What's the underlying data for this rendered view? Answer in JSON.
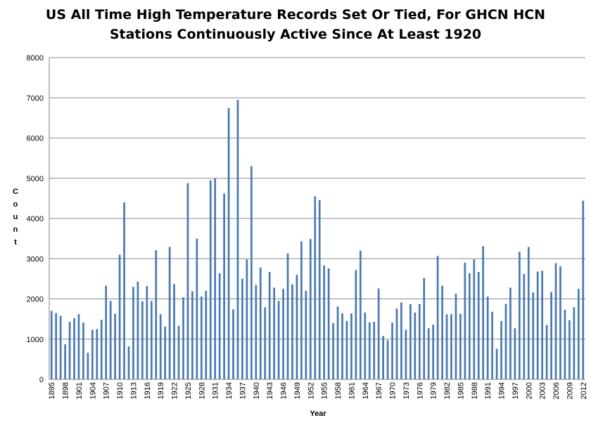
{
  "chart_data": {
    "type": "bar",
    "title": [
      "US All Time High Temperature Records Set Or Tied, For GHCN HCN",
      "Stations Continuously Active Since At Least 1920"
    ],
    "xlabel": "Year",
    "ylabel": "Count",
    "ylim": [
      0,
      8000
    ],
    "yticks": [
      "0",
      "1000",
      "2000",
      "3000",
      "4000",
      "5000",
      "6000",
      "7000",
      "8000"
    ],
    "grid": true,
    "legend": "none",
    "bar_color": "#4a7ab0",
    "categories": [
      1895,
      1896,
      1897,
      1898,
      1899,
      1900,
      1901,
      1902,
      1903,
      1904,
      1905,
      1906,
      1907,
      1908,
      1909,
      1910,
      1911,
      1912,
      1913,
      1914,
      1915,
      1916,
      1917,
      1918,
      1919,
      1920,
      1921,
      1922,
      1923,
      1924,
      1925,
      1926,
      1927,
      1928,
      1929,
      1930,
      1931,
      1932,
      1933,
      1934,
      1935,
      1936,
      1937,
      1938,
      1939,
      1940,
      1941,
      1942,
      1943,
      1944,
      1945,
      1946,
      1947,
      1948,
      1949,
      1950,
      1951,
      1952,
      1953,
      1954,
      1955,
      1956,
      1957,
      1958,
      1959,
      1960,
      1961,
      1962,
      1963,
      1964,
      1965,
      1966,
      1967,
      1968,
      1969,
      1970,
      1971,
      1972,
      1973,
      1974,
      1975,
      1976,
      1977,
      1978,
      1979,
      1980,
      1981,
      1982,
      1983,
      1984,
      1985,
      1986,
      1987,
      1988,
      1989,
      1990,
      1991,
      1992,
      1993,
      1994,
      1995,
      1996,
      1997,
      1998,
      1999,
      2000,
      2001,
      2002,
      2003,
      2004,
      2005,
      2006,
      2007,
      2008,
      2009,
      2010,
      2011,
      2012
    ],
    "xtick_labels": [
      "1895",
      "1898",
      "1901",
      "1904",
      "1907",
      "1910",
      "1913",
      "1916",
      "1919",
      "1922",
      "1925",
      "1928",
      "1931",
      "1934",
      "1937",
      "1940",
      "1943",
      "1946",
      "1949",
      "1952",
      "1955",
      "1958",
      "1961",
      "1964",
      "1967",
      "1970",
      "1973",
      "1976",
      "1979",
      "1982",
      "1985",
      "1988",
      "1991",
      "1994",
      "1997",
      "2000",
      "2003",
      "2006",
      "2009",
      "2012"
    ],
    "values": [
      1700,
      1650,
      1580,
      870,
      1430,
      1520,
      1620,
      1410,
      660,
      1230,
      1250,
      1480,
      2330,
      1950,
      1630,
      3100,
      4400,
      820,
      2300,
      2430,
      1940,
      2320,
      1950,
      3210,
      1620,
      1310,
      3290,
      2370,
      1330,
      2040,
      4880,
      2190,
      3500,
      2060,
      2200,
      4950,
      5000,
      2640,
      4620,
      6750,
      1740,
      6950,
      2500,
      2980,
      5300,
      2350,
      2780,
      1790,
      2670,
      2280,
      1950,
      2250,
      3130,
      2360,
      2600,
      3430,
      2200,
      3490,
      4550,
      4460,
      2830,
      2760,
      1400,
      1810,
      1640,
      1450,
      1640,
      2720,
      3200,
      1660,
      1420,
      1430,
      2260,
      1080,
      970,
      1410,
      1760,
      1910,
      1230,
      1870,
      1660,
      1870,
      2520,
      1270,
      1360,
      3070,
      2330,
      1620,
      1620,
      2130,
      1630,
      2900,
      2640,
      2980,
      2670,
      3310,
      2060,
      1680,
      760,
      1450,
      1880,
      2280,
      1270,
      3170,
      2620,
      3290,
      2160,
      2680,
      2700,
      1350,
      2170,
      2890,
      2810,
      1730,
      1470,
      1790,
      2250,
      4440
    ]
  }
}
